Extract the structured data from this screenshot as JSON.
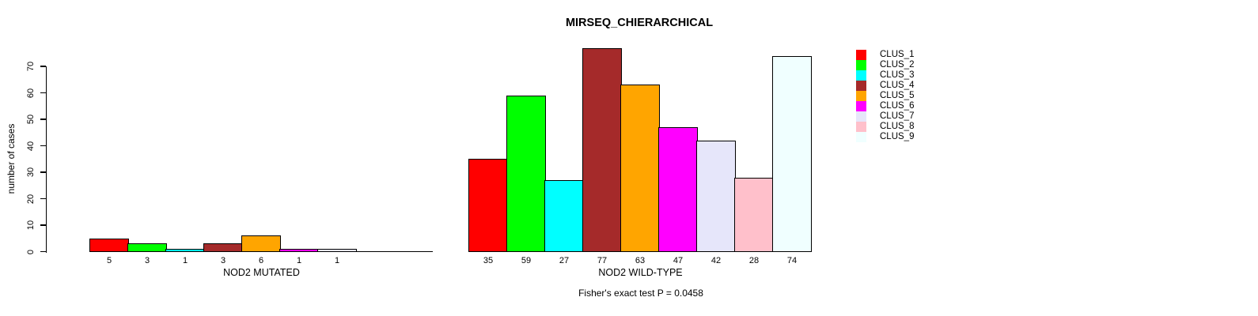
{
  "chart_data": {
    "type": "bar",
    "title": "MIRSEQ_CHIERARCHICAL",
    "ylabel": "number of cases",
    "ylim": [
      0,
      70
    ],
    "yticks": [
      0,
      10,
      20,
      30,
      40,
      50,
      60,
      70
    ],
    "grid": false,
    "legend_position": "right",
    "legend": [
      "CLUS_1",
      "CLUS_2",
      "CLUS_3",
      "CLUS_4",
      "CLUS_5",
      "CLUS_6",
      "CLUS_7",
      "CLUS_8",
      "CLUS_9"
    ],
    "colors": [
      "#ff0000",
      "#00ff00",
      "#00ffff",
      "#a52a2a",
      "#ffa500",
      "#ff00ff",
      "#e6e6fa",
      "#ffc0cb",
      "#f0ffff"
    ],
    "groups": [
      {
        "label": "NOD2 MUTATED",
        "values": [
          5,
          3,
          1,
          3,
          6,
          1,
          1,
          0,
          0
        ],
        "bar_labels": [
          "5",
          "3",
          "1",
          "3",
          "6",
          "1",
          "1",
          "",
          ""
        ]
      },
      {
        "label": "NOD2 WILD-TYPE",
        "values": [
          35,
          59,
          27,
          77,
          63,
          47,
          42,
          28,
          74
        ],
        "bar_labels": [
          "35",
          "59",
          "27",
          "77",
          "63",
          "47",
          "42",
          "28",
          "74"
        ]
      }
    ],
    "annotation": "Fisher's exact test P = 0.0458",
    "axis_color": "#000000",
    "background_color": "#ffffff"
  }
}
